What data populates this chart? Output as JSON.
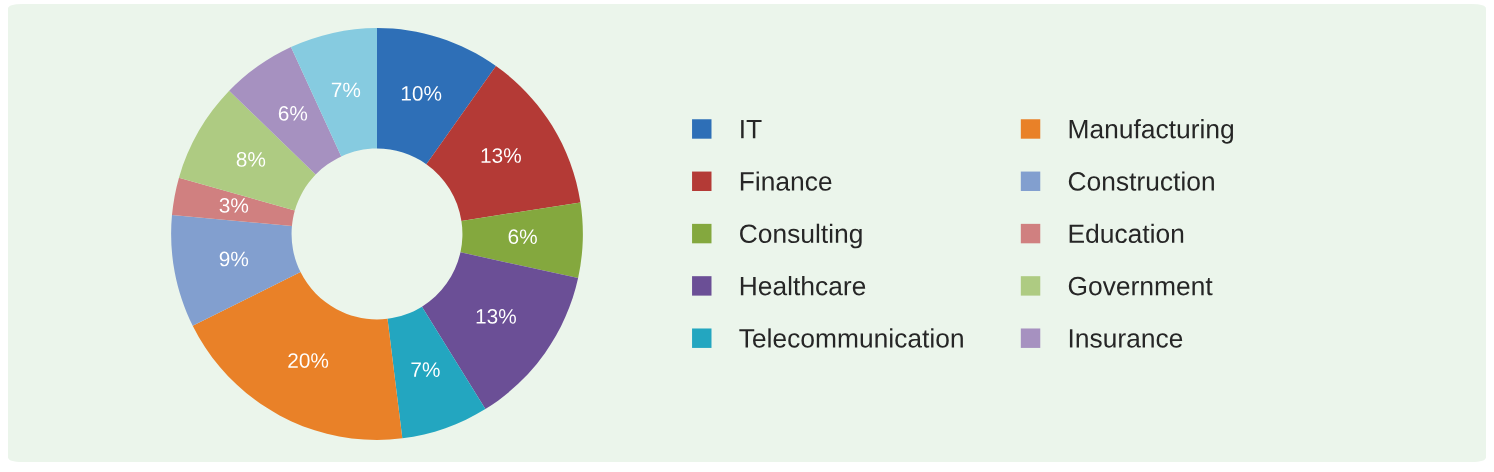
{
  "chart_data": {
    "type": "donut",
    "categories": [
      "IT",
      "Finance",
      "Consulting",
      "Healthcare",
      "Telecommunication",
      "Manufacturing",
      "Construction",
      "Education",
      "Government",
      "Insurance",
      null
    ],
    "values": [
      10,
      13,
      6,
      13,
      7,
      20,
      9,
      3,
      8,
      6,
      7
    ],
    "colors": [
      "#2e6fb7",
      "#b43a36",
      "#84a83e",
      "#6b4f96",
      "#23a6c0",
      "#e98128",
      "#829fcf",
      "#d08080",
      "#aecb82",
      "#a691c0",
      "#86cbe0"
    ],
    "value_labels": [
      "10%",
      "13%",
      "6%",
      "13%",
      "7%",
      "20%",
      "9%",
      "3%",
      "8%",
      "6%",
      "7%"
    ],
    "legend": "right"
  }
}
